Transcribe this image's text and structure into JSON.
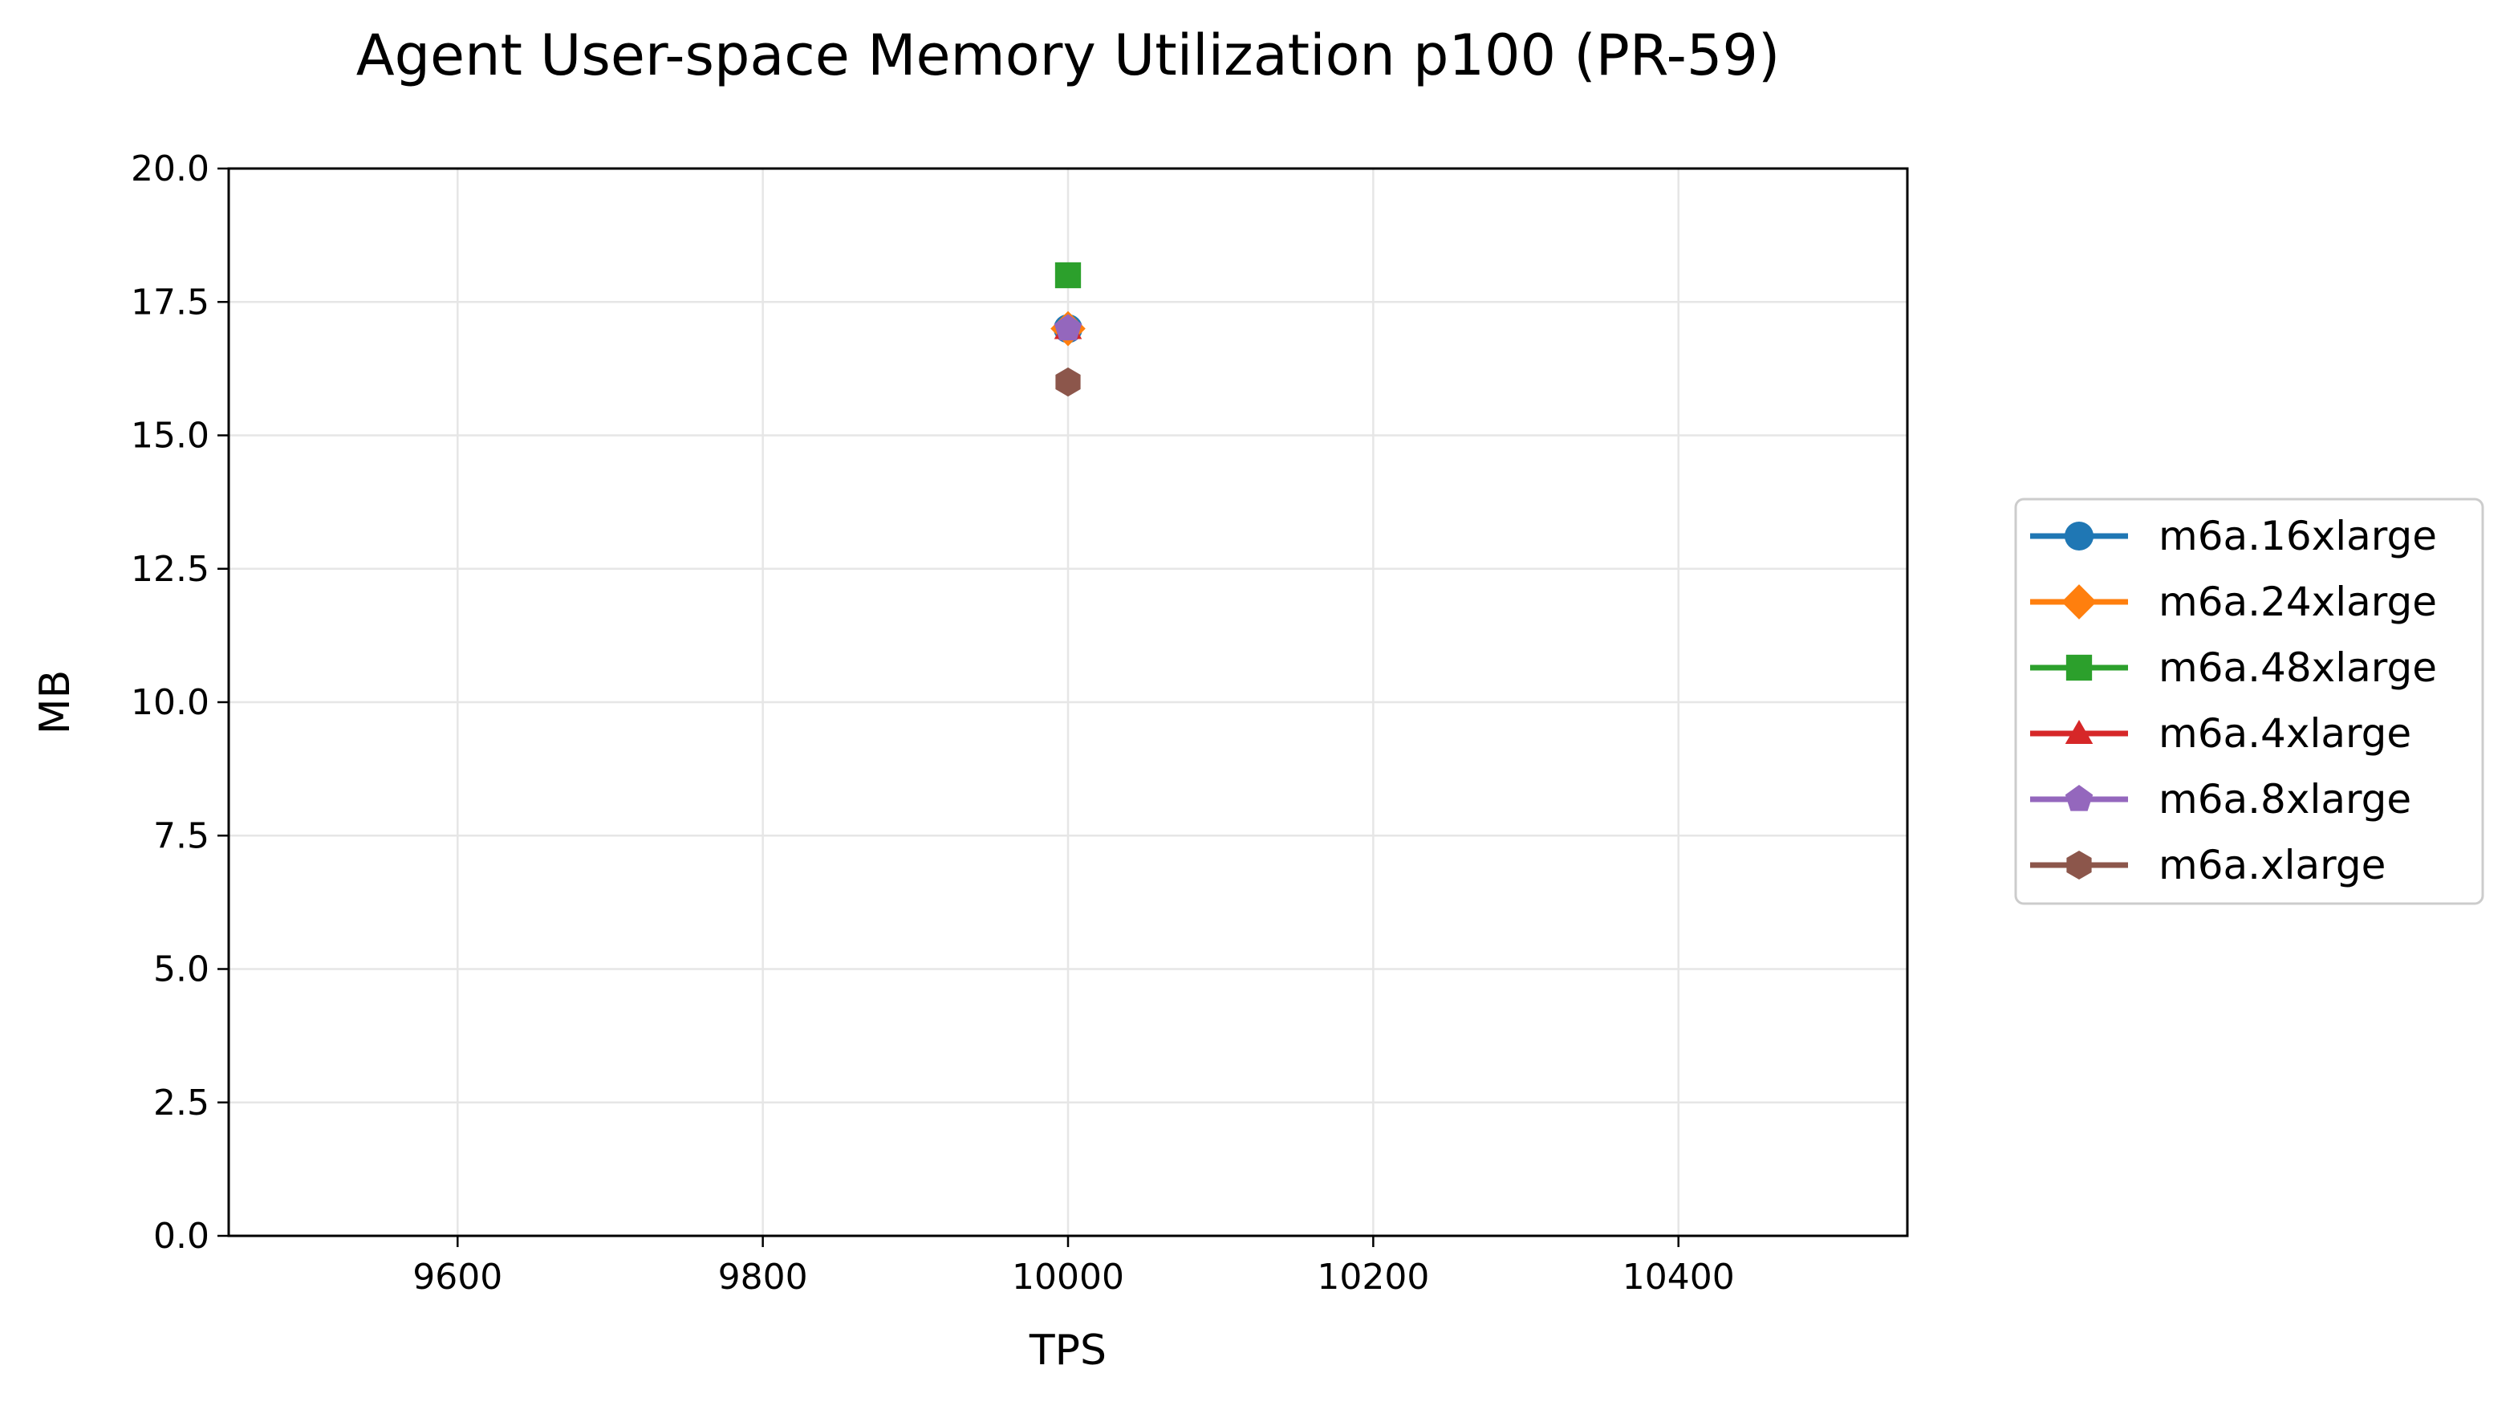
{
  "chart_data": {
    "type": "scatter",
    "title": "Agent User-space Memory Utilization p100 (PR-59)",
    "xlabel": "TPS",
    "ylabel": "MB",
    "xlim": [
      9450,
      10550
    ],
    "ylim": [
      0,
      20
    ],
    "xticks": [
      "9600",
      "9800",
      "10000",
      "10200",
      "10400"
    ],
    "yticks": [
      "0.0",
      "2.5",
      "5.0",
      "7.5",
      "10.0",
      "12.5",
      "15.0",
      "17.5",
      "20.0"
    ],
    "grid": true,
    "legend_position": "right, outside plot",
    "series": [
      {
        "name": "m6a.16xlarge",
        "color": "#1f77b4",
        "marker": "circle",
        "points": [
          {
            "x": 10000,
            "y": 17
          }
        ]
      },
      {
        "name": "m6a.24xlarge",
        "color": "#ff7f0e",
        "marker": "diamond",
        "points": [
          {
            "x": 10000,
            "y": 17
          }
        ]
      },
      {
        "name": "m6a.48xlarge",
        "color": "#2ca02c",
        "marker": "square",
        "points": [
          {
            "x": 10000,
            "y": 18
          }
        ]
      },
      {
        "name": "m6a.4xlarge",
        "color": "#d62728",
        "marker": "triangle",
        "points": [
          {
            "x": 10000,
            "y": 17
          }
        ]
      },
      {
        "name": "m6a.8xlarge",
        "color": "#9467bd",
        "marker": "pentagon",
        "points": [
          {
            "x": 10000,
            "y": 17
          }
        ]
      },
      {
        "name": "m6a.xlarge",
        "color": "#8c564b",
        "marker": "hexagon",
        "points": [
          {
            "x": 10000,
            "y": 16
          }
        ]
      }
    ]
  }
}
